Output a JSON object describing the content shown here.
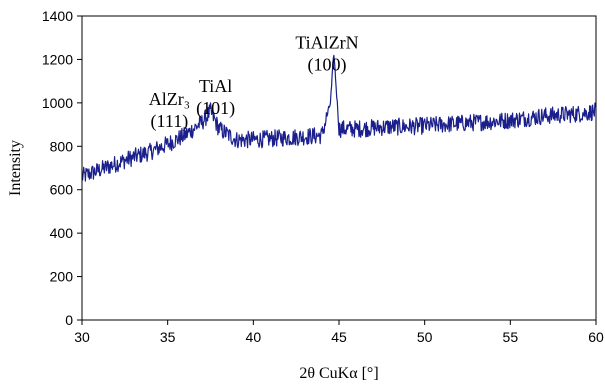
{
  "chart_data": {
    "type": "line",
    "title": "",
    "xlabel": "2θ CuKα [°]",
    "ylabel": "Intensity",
    "xlim": [
      30,
      60
    ],
    "ylim": [
      0,
      1400
    ],
    "x_ticks": [
      30,
      35,
      40,
      45,
      50,
      55,
      60
    ],
    "y_ticks": [
      0,
      200,
      400,
      600,
      800,
      1000,
      1200,
      1400
    ],
    "grid": false,
    "line_color": "#1a1f8c",
    "series": [
      {
        "name": "",
        "x": [
          30,
          31,
          32,
          33,
          34,
          35,
          36,
          37,
          37.5,
          38,
          39,
          40,
          41,
          42,
          43,
          44,
          44.5,
          44.7,
          45,
          46,
          47,
          48,
          49,
          50,
          51,
          52,
          53,
          54,
          55,
          56,
          57,
          58,
          59,
          60
        ],
        "y": [
          660,
          690,
          720,
          750,
          775,
          810,
          850,
          910,
          960,
          880,
          830,
          830,
          835,
          840,
          845,
          850,
          1000,
          1230,
          880,
          880,
          885,
          890,
          890,
          895,
          900,
          905,
          910,
          915,
          920,
          930,
          940,
          945,
          950,
          960
        ]
      }
    ],
    "annotations": [
      {
        "lines": [
          "AlZr₃",
          "(111)"
        ],
        "x": 35.1,
        "y": 990
      },
      {
        "lines": [
          "TiAl",
          "(101)"
        ],
        "x": 37.8,
        "y": 1050
      },
      {
        "lines": [
          "TiAlZrN",
          "(100)"
        ],
        "x": 44.3,
        "y": 1250
      }
    ]
  }
}
